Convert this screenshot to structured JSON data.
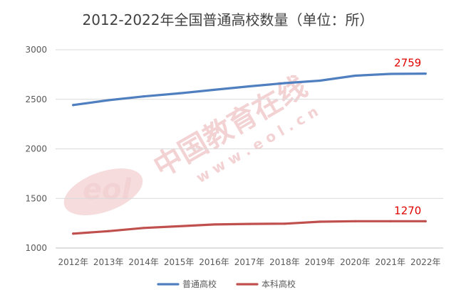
{
  "chart_data": {
    "type": "line",
    "title": "2012-2022年全国普通高校数量（单位：所）",
    "categories": [
      "2012年",
      "2013年",
      "2014年",
      "2015年",
      "2016年",
      "2017年",
      "2018年",
      "2019年",
      "2020年",
      "2021年",
      "2022年"
    ],
    "series": [
      {
        "name": "普通高校",
        "color": "#4f7fbf",
        "values": [
          2442,
          2491,
          2529,
          2560,
          2596,
          2631,
          2663,
          2688,
          2738,
          2756,
          2759
        ],
        "end_label": "2759"
      },
      {
        "name": "本科高校",
        "color": "#c0504d",
        "values": [
          1145,
          1170,
          1202,
          1219,
          1237,
          1243,
          1245,
          1265,
          1270,
          1270,
          1270
        ],
        "end_label": "1270"
      }
    ],
    "ylim": [
      1000,
      3000
    ],
    "yticks": [
      1000,
      1500,
      2000,
      2500,
      3000
    ],
    "grid": true,
    "legend": "bottom",
    "label_color": "#e00000"
  },
  "watermark": {
    "site_cn": "中国教育在线",
    "domain": "w w w . e o l . c n",
    "logo": "eol"
  }
}
